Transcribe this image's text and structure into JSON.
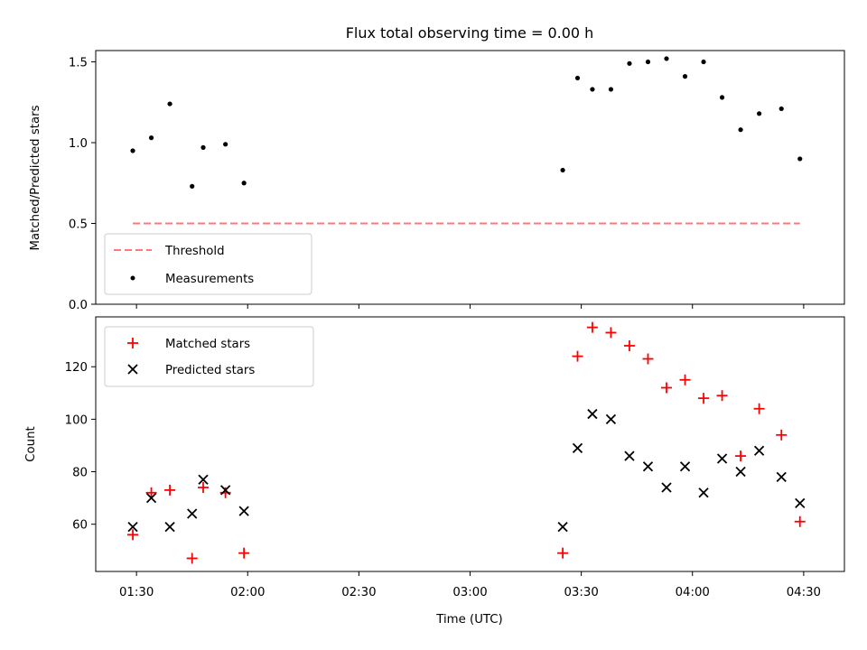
{
  "chart_data": [
    {
      "type": "scatter",
      "title": "Flux total observing time = 0.00 h",
      "xlabel": "",
      "ylabel": "Matched/Predicted stars",
      "ylim": [
        0,
        1.57
      ],
      "xlim": [
        "01:19",
        "04:41"
      ],
      "yticks": [
        "0.0",
        "0.5",
        "1.0",
        "1.5"
      ],
      "legend_position": "lower-left",
      "threshold": {
        "name": "Threshold",
        "value": 0.5,
        "x_range": [
          "01:29",
          "04:29"
        ],
        "color": "#ff7777",
        "style": "dashed"
      },
      "series": [
        {
          "name": "Measurements",
          "color": "#000000",
          "marker": "dot",
          "points": [
            [
              "01:29",
              0.95
            ],
            [
              "01:34",
              1.03
            ],
            [
              "01:39",
              1.24
            ],
            [
              "01:45",
              0.73
            ],
            [
              "01:48",
              0.97
            ],
            [
              "01:54",
              0.99
            ],
            [
              "01:59",
              0.75
            ],
            [
              "03:25",
              0.83
            ],
            [
              "03:29",
              1.4
            ],
            [
              "03:33",
              1.33
            ],
            [
              "03:38",
              1.33
            ],
            [
              "03:43",
              1.49
            ],
            [
              "03:48",
              1.5
            ],
            [
              "03:53",
              1.52
            ],
            [
              "03:58",
              1.41
            ],
            [
              "04:03",
              1.5
            ],
            [
              "04:08",
              1.28
            ],
            [
              "04:13",
              1.08
            ],
            [
              "04:18",
              1.18
            ],
            [
              "04:24",
              1.21
            ],
            [
              "04:29",
              0.9
            ]
          ]
        }
      ]
    },
    {
      "type": "scatter",
      "title": "",
      "xlabel": "Time (UTC)",
      "ylabel": "Count",
      "ylim": [
        42,
        139
      ],
      "xlim": [
        "01:19",
        "04:41"
      ],
      "yticks": [
        60,
        80,
        100,
        120
      ],
      "xticks": [
        "01:30",
        "02:00",
        "02:30",
        "03:00",
        "03:30",
        "04:00",
        "04:30"
      ],
      "legend_position": "upper-left",
      "series": [
        {
          "name": "Matched stars",
          "color": "#ff0000",
          "marker": "plus",
          "points": [
            [
              "01:29",
              56
            ],
            [
              "01:34",
              72
            ],
            [
              "01:39",
              73
            ],
            [
              "01:45",
              47
            ],
            [
              "01:48",
              74
            ],
            [
              "01:54",
              72
            ],
            [
              "01:59",
              49
            ],
            [
              "03:25",
              49
            ],
            [
              "03:29",
              124
            ],
            [
              "03:33",
              135
            ],
            [
              "03:38",
              133
            ],
            [
              "03:43",
              128
            ],
            [
              "03:48",
              123
            ],
            [
              "03:53",
              112
            ],
            [
              "03:58",
              115
            ],
            [
              "04:03",
              108
            ],
            [
              "04:08",
              109
            ],
            [
              "04:13",
              86
            ],
            [
              "04:18",
              104
            ],
            [
              "04:24",
              94
            ],
            [
              "04:29",
              61
            ]
          ]
        },
        {
          "name": "Predicted stars",
          "color": "#000000",
          "marker": "x",
          "points": [
            [
              "01:29",
              59
            ],
            [
              "01:34",
              70
            ],
            [
              "01:39",
              59
            ],
            [
              "01:45",
              64
            ],
            [
              "01:48",
              77
            ],
            [
              "01:54",
              73
            ],
            [
              "01:59",
              65
            ],
            [
              "03:25",
              59
            ],
            [
              "03:29",
              89
            ],
            [
              "03:33",
              102
            ],
            [
              "03:38",
              100
            ],
            [
              "03:43",
              86
            ],
            [
              "03:48",
              82
            ],
            [
              "03:53",
              74
            ],
            [
              "03:58",
              82
            ],
            [
              "04:03",
              72
            ],
            [
              "04:08",
              85
            ],
            [
              "04:13",
              80
            ],
            [
              "04:18",
              88
            ],
            [
              "04:24",
              78
            ],
            [
              "04:29",
              68
            ]
          ]
        }
      ]
    }
  ]
}
